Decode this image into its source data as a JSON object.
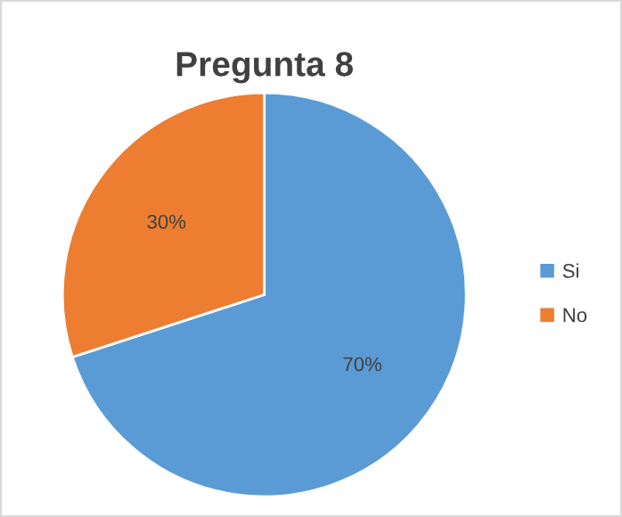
{
  "chart_data": {
    "type": "pie",
    "title": "Pregunta 8",
    "categories": [
      "Si",
      "No"
    ],
    "values": [
      70,
      30
    ],
    "colors": [
      "#5b9bd5",
      "#ed7d31"
    ],
    "value_labels": [
      "70%",
      "30%"
    ],
    "legend": "right"
  }
}
